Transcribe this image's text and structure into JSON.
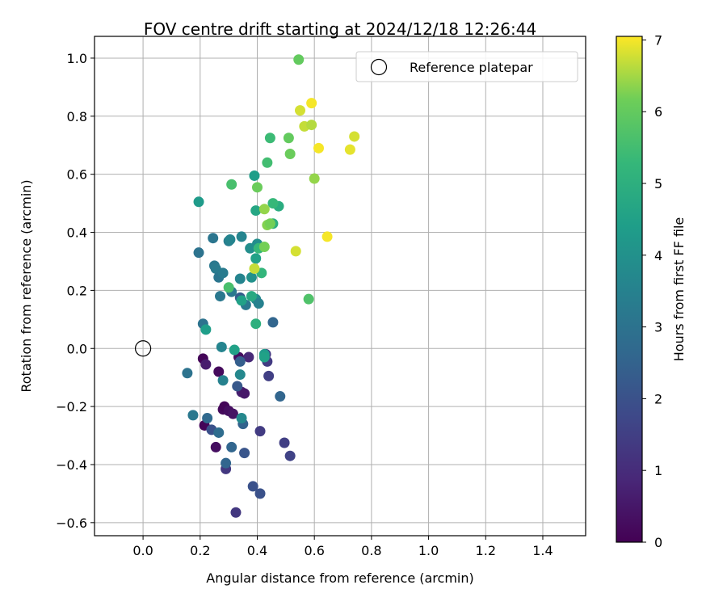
{
  "chart_data": {
    "type": "scatter",
    "title": "FOV centre drift starting at 2024/12/18 12:26:44",
    "xlabel": "Angular distance from reference (arcmin)",
    "ylabel": "Rotation from reference (arcmin)",
    "xlim": [
      -0.17,
      1.55
    ],
    "ylim": [
      -0.645,
      1.075
    ],
    "xticks": [
      0.0,
      0.2,
      0.4,
      0.6,
      0.8,
      1.0,
      1.2,
      1.4
    ],
    "xtick_labels": [
      "0.0",
      "0.2",
      "0.4",
      "0.6",
      "0.8",
      "1.0",
      "1.2",
      "1.4"
    ],
    "yticks": [
      -0.6,
      -0.4,
      -0.2,
      0.0,
      0.2,
      0.4,
      0.6,
      0.8,
      1.0
    ],
    "ytick_labels": [
      "−0.6",
      "−0.4",
      "−0.2",
      "0.0",
      "0.2",
      "0.4",
      "0.6",
      "0.8",
      "1.0"
    ],
    "grid": true,
    "legend": {
      "placement": "top-right",
      "entries": [
        {
          "label": "Reference platepar",
          "marker": "open-circle"
        }
      ]
    },
    "reference": {
      "x": 0.0,
      "y": 0.0
    },
    "colorbar": {
      "label": "Hours from first FF file",
      "colormap": "viridis",
      "range": [
        0,
        7.05
      ],
      "ticks": [
        0,
        1,
        2,
        3,
        4,
        5,
        6,
        7
      ],
      "tick_labels": [
        "0",
        "1",
        "2",
        "3",
        "4",
        "5",
        "6",
        "7"
      ]
    },
    "points": [
      {
        "x": 0.21,
        "y": -0.035,
        "c": 0.1
      },
      {
        "x": 0.215,
        "y": -0.265,
        "c": 0.1
      },
      {
        "x": 0.22,
        "y": -0.055,
        "c": 0.6
      },
      {
        "x": 0.255,
        "y": -0.34,
        "c": 0.3
      },
      {
        "x": 0.265,
        "y": -0.08,
        "c": 0.2
      },
      {
        "x": 0.28,
        "y": -0.21,
        "c": 0.2
      },
      {
        "x": 0.285,
        "y": -0.2,
        "c": 0.1
      },
      {
        "x": 0.3,
        "y": -0.215,
        "c": 0.3
      },
      {
        "x": 0.315,
        "y": -0.225,
        "c": 0.4
      },
      {
        "x": 0.335,
        "y": -0.03,
        "c": 0.3
      },
      {
        "x": 0.345,
        "y": -0.15,
        "c": 0.7
      },
      {
        "x": 0.355,
        "y": -0.155,
        "c": 0.5
      },
      {
        "x": 0.37,
        "y": -0.03,
        "c": 0.9
      },
      {
        "x": 0.29,
        "y": -0.415,
        "c": 1.3
      },
      {
        "x": 0.325,
        "y": -0.565,
        "c": 1.3
      },
      {
        "x": 0.41,
        "y": -0.285,
        "c": 1.4
      },
      {
        "x": 0.43,
        "y": -0.02,
        "c": 1.4
      },
      {
        "x": 0.435,
        "y": -0.045,
        "c": 1.4
      },
      {
        "x": 0.44,
        "y": -0.095,
        "c": 1.5
      },
      {
        "x": 0.495,
        "y": -0.325,
        "c": 1.5
      },
      {
        "x": 0.515,
        "y": -0.37,
        "c": 1.6
      },
      {
        "x": 0.385,
        "y": -0.475,
        "c": 2.0
      },
      {
        "x": 0.41,
        "y": -0.5,
        "c": 2.0
      },
      {
        "x": 0.24,
        "y": -0.28,
        "c": 2.0
      },
      {
        "x": 0.33,
        "y": -0.13,
        "c": 2.2
      },
      {
        "x": 0.355,
        "y": -0.36,
        "c": 2.1
      },
      {
        "x": 0.34,
        "y": -0.045,
        "c": 2.4
      },
      {
        "x": 0.34,
        "y": 0.175,
        "c": 2.3
      },
      {
        "x": 0.35,
        "y": -0.26,
        "c": 2.5
      },
      {
        "x": 0.31,
        "y": -0.34,
        "c": 2.6
      },
      {
        "x": 0.29,
        "y": -0.395,
        "c": 2.6
      },
      {
        "x": 0.225,
        "y": -0.24,
        "c": 2.7
      },
      {
        "x": 0.265,
        "y": -0.29,
        "c": 2.8
      },
      {
        "x": 0.455,
        "y": 0.09,
        "c": 2.6
      },
      {
        "x": 0.48,
        "y": -0.165,
        "c": 2.6
      },
      {
        "x": 0.155,
        "y": -0.085,
        "c": 3.0
      },
      {
        "x": 0.175,
        "y": -0.23,
        "c": 3.2
      },
      {
        "x": 0.195,
        "y": 0.33,
        "c": 3.0
      },
      {
        "x": 0.21,
        "y": 0.085,
        "c": 3.0
      },
      {
        "x": 0.245,
        "y": 0.38,
        "c": 3.1
      },
      {
        "x": 0.25,
        "y": 0.285,
        "c": 3.2
      },
      {
        "x": 0.255,
        "y": 0.275,
        "c": 3.3
      },
      {
        "x": 0.265,
        "y": 0.245,
        "c": 3.1
      },
      {
        "x": 0.27,
        "y": 0.18,
        "c": 3.2
      },
      {
        "x": 0.28,
        "y": 0.26,
        "c": 3.3
      },
      {
        "x": 0.28,
        "y": -0.11,
        "c": 3.5
      },
      {
        "x": 0.275,
        "y": 0.005,
        "c": 3.6
      },
      {
        "x": 0.3,
        "y": 0.37,
        "c": 3.4
      },
      {
        "x": 0.305,
        "y": 0.375,
        "c": 3.6
      },
      {
        "x": 0.31,
        "y": 0.195,
        "c": 3.2
      },
      {
        "x": 0.34,
        "y": 0.24,
        "c": 3.6
      },
      {
        "x": 0.34,
        "y": -0.09,
        "c": 3.7
      },
      {
        "x": 0.345,
        "y": -0.24,
        "c": 3.7
      },
      {
        "x": 0.345,
        "y": 0.385,
        "c": 3.6
      },
      {
        "x": 0.36,
        "y": 0.15,
        "c": 3.2
      },
      {
        "x": 0.375,
        "y": 0.345,
        "c": 3.9
      },
      {
        "x": 0.38,
        "y": 0.245,
        "c": 4.0
      },
      {
        "x": 0.395,
        "y": 0.17,
        "c": 3.8
      },
      {
        "x": 0.4,
        "y": 0.36,
        "c": 3.9
      },
      {
        "x": 0.405,
        "y": 0.155,
        "c": 3.5
      },
      {
        "x": 0.22,
        "y": 0.065,
        "c": 4.4
      },
      {
        "x": 0.195,
        "y": 0.505,
        "c": 4.3
      },
      {
        "x": 0.32,
        "y": -0.005,
        "c": 4.5
      },
      {
        "x": 0.345,
        "y": 0.165,
        "c": 4.5
      },
      {
        "x": 0.38,
        "y": 0.18,
        "c": 4.8
      },
      {
        "x": 0.39,
        "y": 0.595,
        "c": 4.4
      },
      {
        "x": 0.395,
        "y": 0.31,
        "c": 4.5
      },
      {
        "x": 0.395,
        "y": 0.475,
        "c": 4.7
      },
      {
        "x": 0.425,
        "y": -0.02,
        "c": 4.3
      },
      {
        "x": 0.425,
        "y": -0.03,
        "c": 4.5
      },
      {
        "x": 0.455,
        "y": 0.43,
        "c": 5.0
      },
      {
        "x": 0.475,
        "y": 0.49,
        "c": 4.9
      },
      {
        "x": 0.395,
        "y": 0.085,
        "c": 5.0
      },
      {
        "x": 0.415,
        "y": 0.26,
        "c": 5.2
      },
      {
        "x": 0.405,
        "y": 0.345,
        "c": 5.3
      },
      {
        "x": 0.455,
        "y": 0.5,
        "c": 5.3
      },
      {
        "x": 0.435,
        "y": 0.64,
        "c": 5.5
      },
      {
        "x": 0.445,
        "y": 0.725,
        "c": 5.4
      },
      {
        "x": 0.31,
        "y": 0.565,
        "c": 5.6
      },
      {
        "x": 0.3,
        "y": 0.21,
        "c": 5.6
      },
      {
        "x": 0.4,
        "y": 0.555,
        "c": 6.1
      },
      {
        "x": 0.425,
        "y": 0.35,
        "c": 6.2
      },
      {
        "x": 0.425,
        "y": 0.48,
        "c": 6.4
      },
      {
        "x": 0.435,
        "y": 0.425,
        "c": 6.3
      },
      {
        "x": 0.445,
        "y": 0.43,
        "c": 6.2
      },
      {
        "x": 0.51,
        "y": 0.725,
        "c": 6.0
      },
      {
        "x": 0.515,
        "y": 0.67,
        "c": 6.1
      },
      {
        "x": 0.545,
        "y": 0.995,
        "c": 6.0
      },
      {
        "x": 0.58,
        "y": 0.17,
        "c": 5.7
      },
      {
        "x": 0.6,
        "y": 0.585,
        "c": 6.4
      },
      {
        "x": 0.39,
        "y": 0.275,
        "c": 6.7
      },
      {
        "x": 0.535,
        "y": 0.335,
        "c": 6.8
      },
      {
        "x": 0.55,
        "y": 0.82,
        "c": 6.8
      },
      {
        "x": 0.565,
        "y": 0.765,
        "c": 6.7
      },
      {
        "x": 0.59,
        "y": 0.77,
        "c": 6.6
      },
      {
        "x": 0.59,
        "y": 0.845,
        "c": 7.0
      },
      {
        "x": 0.615,
        "y": 0.69,
        "c": 7.0
      },
      {
        "x": 0.645,
        "y": 0.385,
        "c": 7.0
      },
      {
        "x": 0.725,
        "y": 0.685,
        "c": 6.9
      },
      {
        "x": 0.74,
        "y": 0.73,
        "c": 6.8
      }
    ]
  }
}
